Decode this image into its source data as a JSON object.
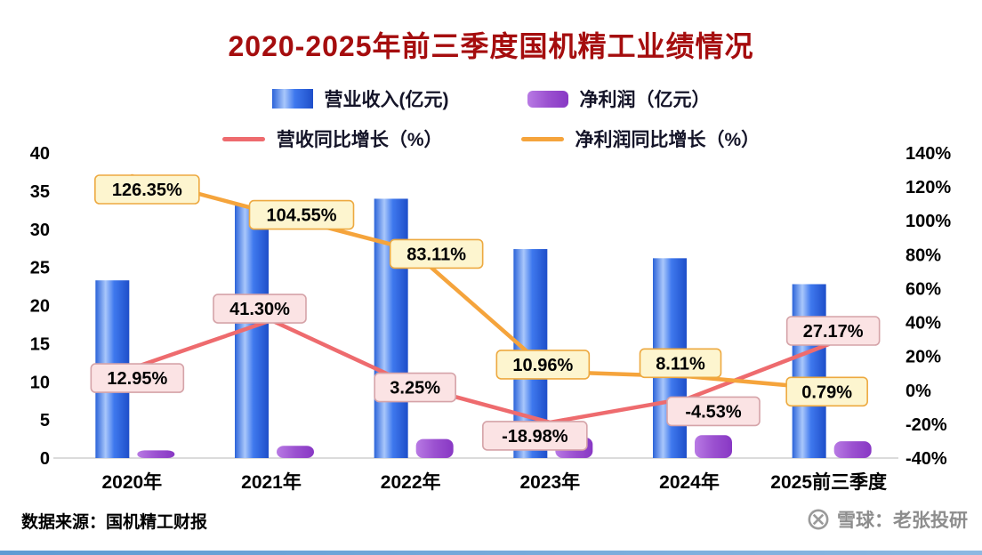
{
  "page": {
    "title": "2020-2025年前三季度国机精工业绩情况",
    "source_note": "数据来源：国机精工财报",
    "watermark": "雪球：老张投研"
  },
  "chart_data": {
    "type": "bar+line",
    "title": "2020-2025年前三季度国机精工业绩情况",
    "categories": [
      "2020年",
      "2021年",
      "2022年",
      "2023年",
      "2024年",
      "2025前三季度"
    ],
    "series": [
      {
        "name": "营业收入(亿元)",
        "type": "bar",
        "axis": "left",
        "colors": [
          "#2b63d9",
          "#a9c7fb",
          "#3f79ee",
          "#1e4ec9"
        ],
        "values": [
          23.3,
          33.1,
          34.0,
          27.4,
          26.2,
          22.8
        ]
      },
      {
        "name": "净利润（亿元）",
        "type": "bar",
        "axis": "left",
        "colors": [
          "#b87ae4",
          "#9b51d0",
          "#8838c4"
        ],
        "values": [
          1.0,
          1.6,
          2.5,
          2.7,
          3.0,
          2.2
        ]
      },
      {
        "name": "营收同比增长（%）",
        "type": "line",
        "axis": "right",
        "color": "#ee6b6e",
        "label_bg": "#fbe3e4",
        "label_border": "#d5a3a8",
        "values": [
          12.95,
          41.3,
          3.25,
          -18.98,
          -4.53,
          27.17
        ],
        "labels": [
          "12.95%",
          "41.30%",
          "3.25%",
          "-18.98%",
          "-4.53%",
          "27.17%"
        ]
      },
      {
        "name": "净利润同比增长（%）",
        "type": "line",
        "axis": "right",
        "color": "#f5a43c",
        "label_bg": "#fdf5cf",
        "label_border": "#eda940",
        "values": [
          126.35,
          104.55,
          83.11,
          10.96,
          8.11,
          0.79
        ],
        "labels": [
          "126.35%",
          "104.55%",
          "83.11%",
          "10.96%",
          "8.11%",
          "0.79%"
        ]
      }
    ],
    "left_axis": {
      "min": 0,
      "max": 40,
      "step": 5,
      "ticks": [
        "40",
        "35",
        "30",
        "25",
        "20",
        "15",
        "10",
        "5",
        "0"
      ]
    },
    "right_axis": {
      "min": -40,
      "max": 140,
      "step": 20,
      "ticks": [
        "140%",
        "120%",
        "100%",
        "80%",
        "60%",
        "40%",
        "20%",
        "0%",
        "-20%",
        "-40%"
      ]
    },
    "grid": false,
    "legend_position": "top"
  }
}
